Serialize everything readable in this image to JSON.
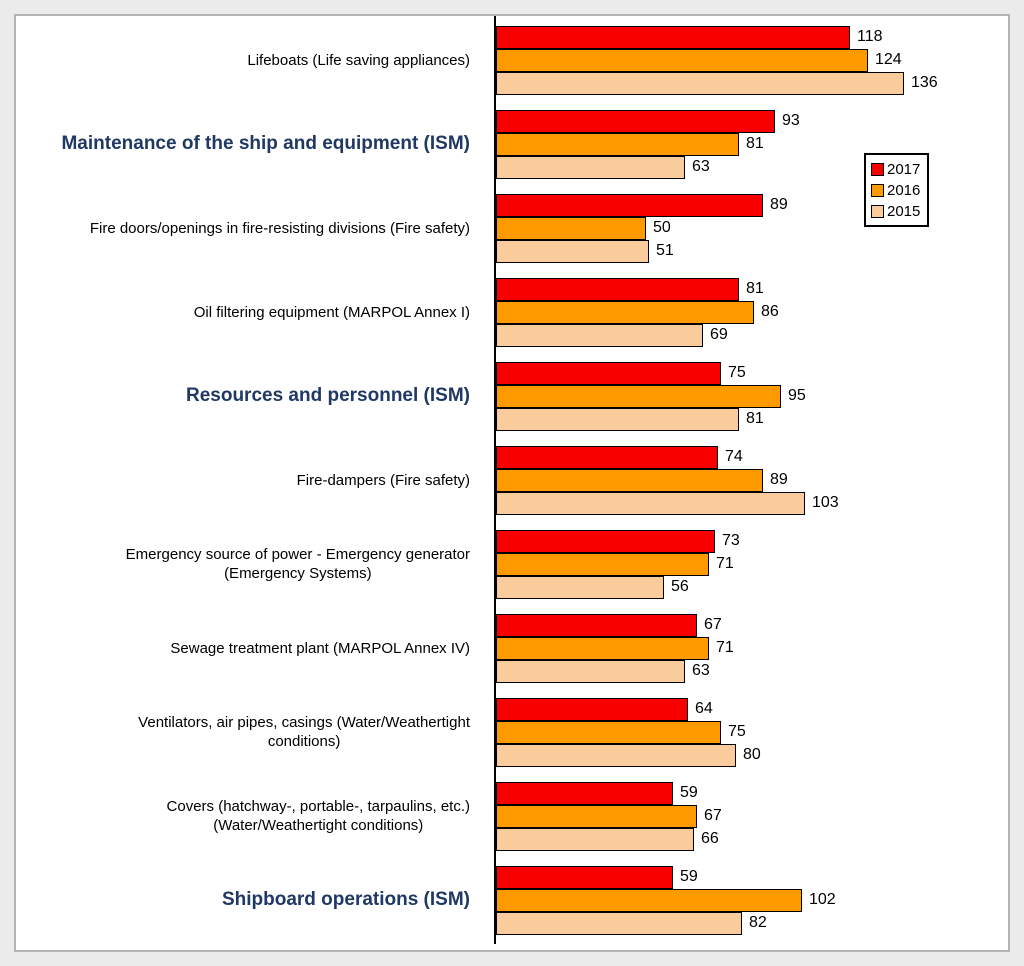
{
  "page": {
    "background": "#ebebeb"
  },
  "panel": {
    "background": "#ffffff",
    "border_color": "#b4b4b4"
  },
  "legend": {
    "position": "right",
    "entries": [
      {
        "label": "2017",
        "color": "#f80000"
      },
      {
        "label": "2016",
        "color": "#ff9900"
      },
      {
        "label": "2015",
        "color": "#fbcc9b"
      }
    ]
  },
  "chart_data": {
    "type": "bar",
    "orientation": "horizontal",
    "title": "",
    "xlabel": "",
    "ylabel": "",
    "xlim": [
      0,
      140
    ],
    "grid": false,
    "value_labels": true,
    "bar_border_color": "#000000",
    "axis_baseline_color": "#000000",
    "emphasis_color": "#1f3864",
    "categories": [
      {
        "label": "Lifeboats (Life saving appliances)",
        "emphasis": false
      },
      {
        "label": "Maintenance of the ship and equipment (ISM)",
        "emphasis": true
      },
      {
        "label": "Fire doors/openings in fire-resisting divisions (Fire safety)",
        "emphasis": false
      },
      {
        "label": "Oil filtering equipment (MARPOL Annex I)",
        "emphasis": false
      },
      {
        "label": "Resources and personnel (ISM)",
        "emphasis": true
      },
      {
        "label": "Fire-dampers (Fire safety)",
        "emphasis": false
      },
      {
        "label": "Emergency source of power - Emergency generator\n(Emergency Systems)",
        "emphasis": false
      },
      {
        "label": "Sewage treatment plant (MARPOL Annex IV)",
        "emphasis": false
      },
      {
        "label": "Ventilators, air pipes, casings (Water/Weathertight\nconditions)",
        "emphasis": false
      },
      {
        "label": "Covers (hatchway-, portable-, tarpaulins, etc.)\n(Water/Weathertight conditions)",
        "emphasis": false
      },
      {
        "label": "Shipboard operations (ISM)",
        "emphasis": true
      }
    ],
    "series": [
      {
        "name": "2017",
        "color": "#f80000",
        "values": [
          118,
          93,
          89,
          81,
          75,
          74,
          73,
          67,
          64,
          59,
          59
        ]
      },
      {
        "name": "2016",
        "color": "#ff9900",
        "values": [
          124,
          81,
          50,
          86,
          95,
          89,
          71,
          71,
          75,
          67,
          102
        ]
      },
      {
        "name": "2015",
        "color": "#fbcc9b",
        "values": [
          136,
          63,
          51,
          69,
          81,
          103,
          56,
          63,
          80,
          66,
          82
        ]
      }
    ]
  }
}
